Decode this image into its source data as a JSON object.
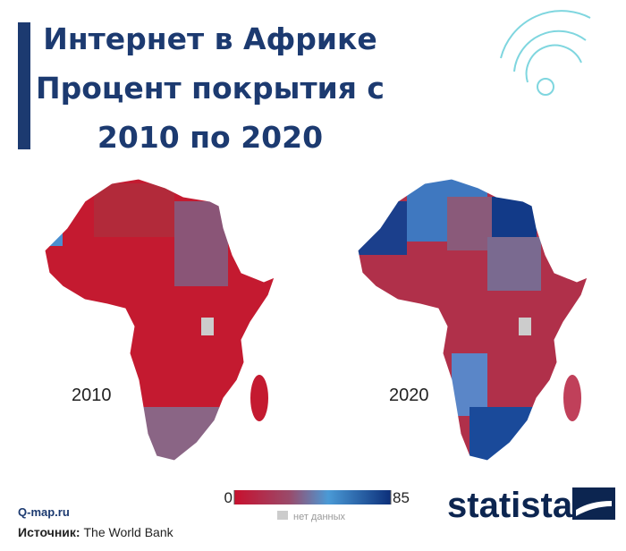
{
  "header": {
    "title_lines": [
      "Интернет в Африке",
      "Процент покрытия с",
      "2010 по 2020"
    ]
  },
  "maps": [
    {
      "label": "2010"
    },
    {
      "label": "2020"
    }
  ],
  "legend": {
    "min": 0,
    "max": 85,
    "no_data": "нет данных"
  },
  "footer": {
    "site": "Q-map.ru",
    "source_label": "Источник:",
    "source": "The World Bank"
  },
  "brand": "statista"
}
